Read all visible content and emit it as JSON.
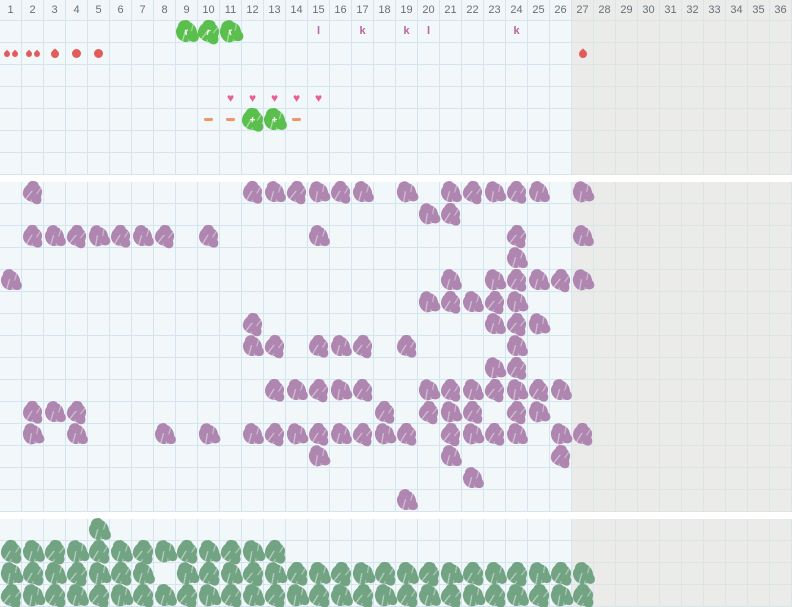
{
  "meta": {
    "columns": 36,
    "shaded_from_column": 27
  },
  "header": {
    "labels": [
      "1",
      "2",
      "3",
      "4",
      "5",
      "6",
      "7",
      "8",
      "9",
      "10",
      "11",
      "12",
      "13",
      "14",
      "15",
      "16",
      "17",
      "18",
      "19",
      "20",
      "21",
      "22",
      "23",
      "24",
      "25",
      "26",
      "27",
      "28",
      "29",
      "30",
      "31",
      "32",
      "33",
      "34",
      "35",
      "36"
    ]
  },
  "colors": {
    "cell_bg": "#f2f7fa",
    "shaded_bg": "#ebece9",
    "grid_line": "#d4e5ef",
    "shaded_line": "#dbe4e7",
    "header_bg": "#f3f6f8",
    "header_text": "#64707c",
    "divider": "#ffffff",
    "green": "#5abf4d",
    "purple": "#ae86b0",
    "sage": "#72a483",
    "red": "#e25c5c",
    "pink": "#e85f96",
    "mauve": "#b4679e",
    "orange": "#f19566"
  },
  "top_section": {
    "rows": [
      {
        "cells": [
          {
            "col": 9,
            "type": "green-blob",
            "label": "r"
          },
          {
            "col": 10,
            "type": "green-blob",
            "label": "r"
          },
          {
            "col": 11,
            "type": "green-blob",
            "label": "r"
          },
          {
            "col": 15,
            "type": "letter",
            "label": "l"
          },
          {
            "col": 17,
            "type": "letter",
            "label": "k"
          },
          {
            "col": 19,
            "type": "letter",
            "label": "k"
          },
          {
            "col": 20,
            "type": "letter",
            "label": "l"
          },
          {
            "col": 24,
            "type": "letter",
            "label": "k"
          }
        ]
      },
      {
        "cells": [
          {
            "col": 1,
            "type": "droplet-pair"
          },
          {
            "col": 2,
            "type": "droplet-pair"
          },
          {
            "col": 3,
            "type": "droplet"
          },
          {
            "col": 4,
            "type": "dot"
          },
          {
            "col": 5,
            "type": "dot"
          },
          {
            "col": 27,
            "type": "droplet"
          }
        ]
      },
      {
        "cells": []
      },
      {
        "cells": [
          {
            "col": 11,
            "type": "heart"
          },
          {
            "col": 12,
            "type": "heart"
          },
          {
            "col": 13,
            "type": "heart"
          },
          {
            "col": 14,
            "type": "heart"
          },
          {
            "col": 15,
            "type": "heart"
          }
        ]
      },
      {
        "cells": [
          {
            "col": 10,
            "type": "dash"
          },
          {
            "col": 11,
            "type": "dash"
          },
          {
            "col": 12,
            "type": "green-blob",
            "label": "+"
          },
          {
            "col": 13,
            "type": "green-blob",
            "label": "+"
          },
          {
            "col": 14,
            "type": "dash"
          }
        ]
      },
      {
        "cells": []
      },
      {
        "cells": []
      }
    ]
  },
  "middle_section": {
    "icon": "purple-blob",
    "rows": [
      [
        2,
        12,
        13,
        14,
        15,
        16,
        17,
        19,
        21,
        22,
        23,
        24,
        25,
        27
      ],
      [
        20,
        21
      ],
      [
        2,
        3,
        4,
        5,
        6,
        7,
        8,
        10,
        15,
        24,
        27
      ],
      [
        24
      ],
      [
        1,
        21,
        23,
        24,
        25,
        26,
        27
      ],
      [
        20,
        21,
        22,
        23,
        24
      ],
      [
        12,
        23,
        24,
        25
      ],
      [
        12,
        13,
        15,
        16,
        17,
        19,
        24
      ],
      [
        23,
        24
      ],
      [
        13,
        14,
        15,
        16,
        17,
        20,
        21,
        22,
        23,
        24,
        25,
        26
      ],
      [
        2,
        3,
        4,
        18,
        20,
        21,
        22,
        24,
        25
      ],
      [
        2,
        4,
        8,
        10,
        12,
        13,
        14,
        15,
        16,
        17,
        18,
        19,
        21,
        22,
        23,
        24,
        26,
        27
      ],
      [
        15,
        21,
        26
      ],
      [
        22
      ],
      [
        19
      ]
    ]
  },
  "bottom_section": {
    "icon": "sage-blob",
    "rows": [
      [
        5
      ],
      [
        1,
        2,
        3,
        4,
        5,
        6,
        7,
        8,
        9,
        10,
        11,
        12,
        13
      ],
      [
        1,
        2,
        3,
        4,
        5,
        6,
        7,
        9,
        10,
        11,
        12,
        13,
        14,
        15,
        16,
        17,
        18,
        19,
        20,
        21,
        22,
        23,
        24,
        25,
        26,
        27
      ],
      [
        1,
        2,
        3,
        4,
        5,
        6,
        7,
        8,
        9,
        10,
        11,
        12,
        13,
        14,
        15,
        16,
        17,
        18,
        19,
        20,
        21,
        22,
        23,
        24,
        25,
        26,
        27
      ]
    ]
  }
}
